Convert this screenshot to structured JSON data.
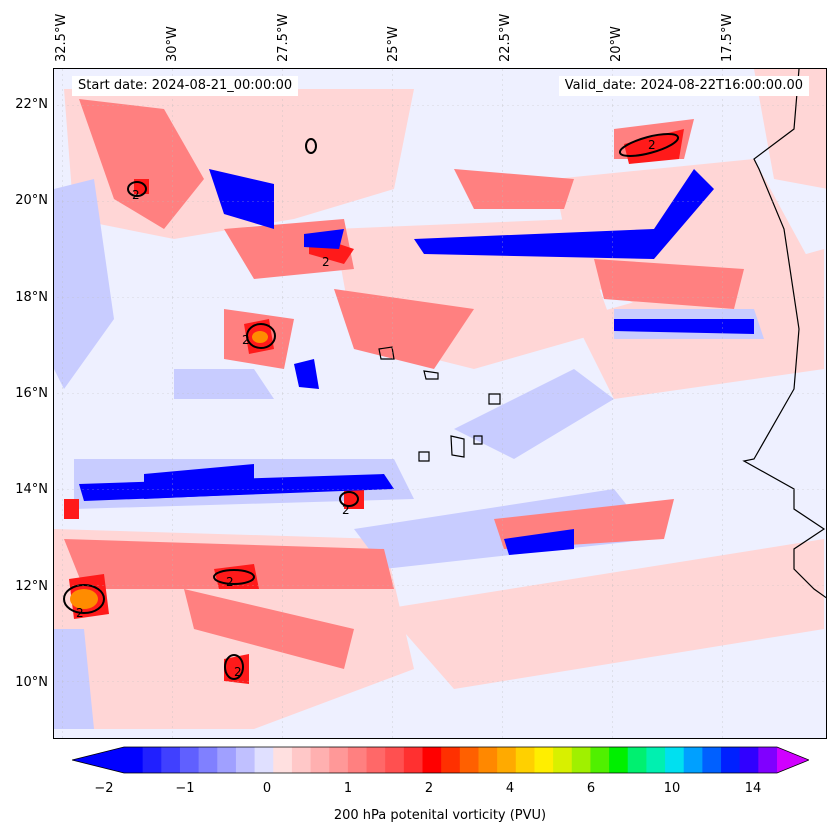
{
  "map": {
    "start_date": "Start date: 2024-08-21_00:00:00",
    "valid_date": "Valid_date: 2024-08-22T16:00:00.00",
    "longitude_labels": [
      "32.5°W",
      "30°W",
      "27.5°W",
      "25°W",
      "22.5°W",
      "20°W",
      "17.5°W"
    ],
    "latitude_labels": [
      "22°N",
      "20°N",
      "18°N",
      "16°N",
      "14°N",
      "12°N",
      "10°N"
    ],
    "contour_label": "2",
    "colors": {
      "strong_negative": "#0000ff",
      "weak_negative": "#c8ccff",
      "background": "#eef0ff",
      "weak_positive": "#ffd6d6",
      "mid_positive": "#ff8080",
      "strong_positive": "#ff1a1a",
      "peak": "#ff8c00",
      "coastline": "#000000"
    }
  },
  "colorbar": {
    "label": "200 hPa potenital vorticity (PVU)",
    "tick_labels": [
      "−2",
      "−1",
      "0",
      "1",
      "2",
      "4",
      "6",
      "10",
      "14"
    ],
    "colors": [
      "#0000ff",
      "#2020ff",
      "#4040ff",
      "#6060ff",
      "#8080ff",
      "#a0a0ff",
      "#c0c0ff",
      "#e0e0ff",
      "#ffe0e0",
      "#ffc8c8",
      "#ffb0b0",
      "#ff9898",
      "#ff8080",
      "#ff6868",
      "#ff5050",
      "#ff3030",
      "#ff0000",
      "#ff3000",
      "#ff6000",
      "#ff8800",
      "#ffaa00",
      "#ffd000",
      "#ffee00",
      "#d8f000",
      "#a0f000",
      "#50f000",
      "#00f000",
      "#00f070",
      "#00f0b0",
      "#00e0f0",
      "#00a0ff",
      "#0060ff",
      "#0020ff",
      "#3000ff",
      "#8000ff"
    ],
    "extend_low": "#0000ff",
    "extend_high": "#d000ff"
  }
}
